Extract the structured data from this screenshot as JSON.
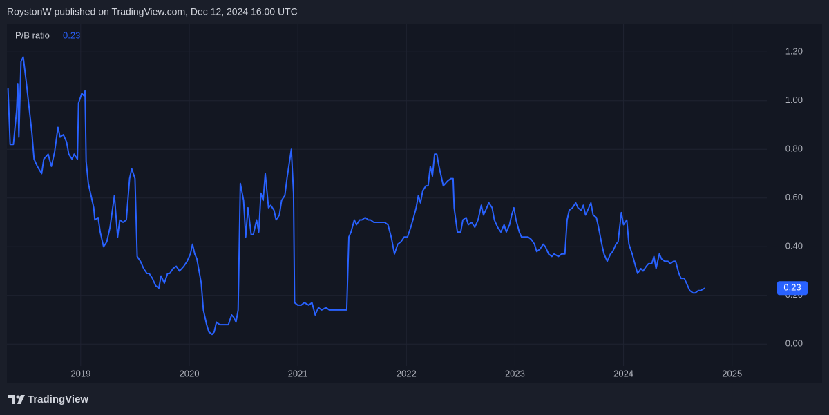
{
  "header": "RoystonW published on TradingView.com, Dec 12, 2024 16:00 UTC",
  "footer": "TradingView",
  "chart_data": {
    "type": "line",
    "xlim": [
      2018.32,
      2025.32
    ],
    "xticks": [
      2019,
      2020,
      2021,
      2022,
      2023,
      2024,
      2025
    ],
    "ylim": [
      -0.09,
      1.3
    ],
    "yticks": [
      {
        "value": 0,
        "label": "0.00"
      },
      {
        "value": 0.2,
        "label": "0.20"
      },
      {
        "value": 0.4,
        "label": "0.40"
      },
      {
        "value": 0.6,
        "label": "0.60"
      },
      {
        "value": 0.8,
        "label": "0.80"
      },
      {
        "value": 1,
        "label": "1.00"
      },
      {
        "value": 1.2,
        "label": "1.20"
      }
    ],
    "grid": true,
    "x": [
      2018.33,
      2018.35,
      2018.38,
      2018.41,
      2018.42,
      2018.43,
      2018.45,
      2018.47,
      2018.5,
      2018.52,
      2018.55,
      2018.57,
      2018.6,
      2018.64,
      2018.66,
      2018.7,
      2018.73,
      2018.76,
      2018.79,
      2018.81,
      2018.84,
      2018.87,
      2018.89,
      2018.92,
      2018.94,
      2018.97,
      2018.98,
      2019.01,
      2019.03,
      2019.04,
      2019.05,
      2019.07,
      2019.09,
      2019.12,
      2019.13,
      2019.16,
      2019.18,
      2019.21,
      2019.24,
      2019.27,
      2019.31,
      2019.34,
      2019.36,
      2019.39,
      2019.42,
      2019.45,
      2019.47,
      2019.5,
      2019.52,
      2019.55,
      2019.58,
      2019.61,
      2019.63,
      2019.66,
      2019.69,
      2019.72,
      2019.74,
      2019.77,
      2019.8,
      2019.82,
      2019.85,
      2019.88,
      2019.91,
      2019.95,
      2019.98,
      2020.01,
      2020.03,
      2020.05,
      2020.07,
      2020.11,
      2020.13,
      2020.16,
      2020.18,
      2020.21,
      2020.23,
      2020.25,
      2020.28,
      2020.31,
      2020.34,
      2020.36,
      2020.39,
      2020.41,
      2020.43,
      2020.45,
      2020.47,
      2020.5,
      2020.52,
      2020.54,
      2020.57,
      2020.59,
      2020.62,
      2020.64,
      2020.66,
      2020.68,
      2020.7,
      2020.73,
      2020.75,
      2020.78,
      2020.8,
      2020.83,
      2020.85,
      2020.88,
      2020.9,
      2020.94,
      2020.96,
      2020.97,
      2021.0,
      2021.03,
      2021.06,
      2021.1,
      2021.13,
      2021.16,
      2021.19,
      2021.22,
      2021.26,
      2021.29,
      2021.32,
      2021.35,
      2021.38,
      2021.42,
      2021.45,
      2021.47,
      2021.49,
      2021.52,
      2021.54,
      2021.57,
      2021.59,
      2021.62,
      2021.65,
      2021.67,
      2021.7,
      2021.73,
      2021.77,
      2021.8,
      2021.83,
      2021.86,
      2021.89,
      2021.92,
      2021.95,
      2021.98,
      2022.01,
      2022.04,
      2022.06,
      2022.09,
      2022.11,
      2022.13,
      2022.15,
      2022.18,
      2022.2,
      2022.22,
      2022.24,
      2022.26,
      2022.28,
      2022.3,
      2022.32,
      2022.34,
      2022.36,
      2022.38,
      2022.41,
      2022.43,
      2022.44,
      2022.47,
      2022.5,
      2022.52,
      2022.55,
      2022.57,
      2022.6,
      2022.63,
      2022.66,
      2022.69,
      2022.71,
      2022.74,
      2022.76,
      2022.79,
      2022.81,
      2022.84,
      2022.87,
      2022.9,
      2022.92,
      2022.95,
      2022.97,
      2022.99,
      2023.01,
      2023.04,
      2023.06,
      2023.09,
      2023.12,
      2023.15,
      2023.18,
      2023.2,
      2023.23,
      2023.26,
      2023.28,
      2023.31,
      2023.34,
      2023.36,
      2023.4,
      2023.43,
      2023.46,
      2023.48,
      2023.5,
      2023.53,
      2023.56,
      2023.58,
      2023.61,
      2023.63,
      2023.65,
      2023.68,
      2023.7,
      2023.72,
      2023.75,
      2023.77,
      2023.8,
      2023.82,
      2023.85,
      2023.88,
      2023.9,
      2023.93,
      2023.95,
      2023.98,
      2024.0,
      2024.03,
      2024.05,
      2024.08,
      2024.11,
      2024.13,
      2024.16,
      2024.18,
      2024.21,
      2024.23,
      2024.26,
      2024.28,
      2024.3,
      2024.33,
      2024.35,
      2024.38,
      2024.41,
      2024.43,
      2024.46,
      2024.48,
      2024.51,
      2024.53,
      2024.56,
      2024.59,
      2024.61,
      2024.64,
      2024.66,
      2024.69,
      2024.71,
      2024.75
    ],
    "series": [
      {
        "name": "P/B ratio",
        "color": "#2962ff",
        "values": [
          1.05,
          0.82,
          0.82,
          0.96,
          1.07,
          0.85,
          1.16,
          1.18,
          1.07,
          0.99,
          0.87,
          0.76,
          0.73,
          0.7,
          0.76,
          0.78,
          0.73,
          0.79,
          0.89,
          0.85,
          0.86,
          0.83,
          0.78,
          0.76,
          0.78,
          0.76,
          0.99,
          1.03,
          1.02,
          1.04,
          0.75,
          0.66,
          0.62,
          0.56,
          0.51,
          0.52,
          0.46,
          0.4,
          0.42,
          0.48,
          0.61,
          0.44,
          0.51,
          0.5,
          0.51,
          0.68,
          0.72,
          0.68,
          0.36,
          0.34,
          0.31,
          0.29,
          0.29,
          0.27,
          0.24,
          0.23,
          0.28,
          0.25,
          0.29,
          0.29,
          0.31,
          0.32,
          0.3,
          0.32,
          0.34,
          0.37,
          0.41,
          0.37,
          0.35,
          0.25,
          0.14,
          0.08,
          0.05,
          0.04,
          0.05,
          0.09,
          0.08,
          0.08,
          0.08,
          0.08,
          0.12,
          0.11,
          0.09,
          0.14,
          0.66,
          0.59,
          0.44,
          0.56,
          0.45,
          0.45,
          0.51,
          0.46,
          0.62,
          0.59,
          0.7,
          0.56,
          0.57,
          0.55,
          0.51,
          0.53,
          0.59,
          0.61,
          0.68,
          0.8,
          0.62,
          0.17,
          0.16,
          0.16,
          0.17,
          0.16,
          0.17,
          0.12,
          0.15,
          0.14,
          0.15,
          0.14,
          0.14,
          0.14,
          0.14,
          0.14,
          0.14,
          0.44,
          0.46,
          0.51,
          0.49,
          0.51,
          0.51,
          0.52,
          0.51,
          0.51,
          0.5,
          0.5,
          0.5,
          0.5,
          0.49,
          0.44,
          0.37,
          0.41,
          0.42,
          0.44,
          0.44,
          0.48,
          0.51,
          0.56,
          0.61,
          0.58,
          0.63,
          0.65,
          0.65,
          0.73,
          0.69,
          0.78,
          0.78,
          0.73,
          0.69,
          0.65,
          0.66,
          0.67,
          0.68,
          0.68,
          0.56,
          0.46,
          0.46,
          0.51,
          0.52,
          0.49,
          0.5,
          0.48,
          0.51,
          0.57,
          0.53,
          0.56,
          0.58,
          0.56,
          0.51,
          0.48,
          0.46,
          0.49,
          0.46,
          0.49,
          0.53,
          0.56,
          0.51,
          0.46,
          0.44,
          0.44,
          0.44,
          0.43,
          0.41,
          0.38,
          0.39,
          0.41,
          0.4,
          0.37,
          0.36,
          0.37,
          0.36,
          0.37,
          0.37,
          0.51,
          0.55,
          0.56,
          0.58,
          0.56,
          0.55,
          0.57,
          0.53,
          0.56,
          0.58,
          0.53,
          0.52,
          0.48,
          0.41,
          0.37,
          0.34,
          0.37,
          0.38,
          0.41,
          0.42,
          0.54,
          0.49,
          0.51,
          0.41,
          0.37,
          0.32,
          0.29,
          0.31,
          0.3,
          0.32,
          0.33,
          0.33,
          0.36,
          0.31,
          0.37,
          0.35,
          0.34,
          0.34,
          0.33,
          0.34,
          0.34,
          0.29,
          0.27,
          0.27,
          0.24,
          0.22,
          0.21,
          0.21,
          0.22,
          0.22,
          0.23
        ]
      }
    ]
  }
}
